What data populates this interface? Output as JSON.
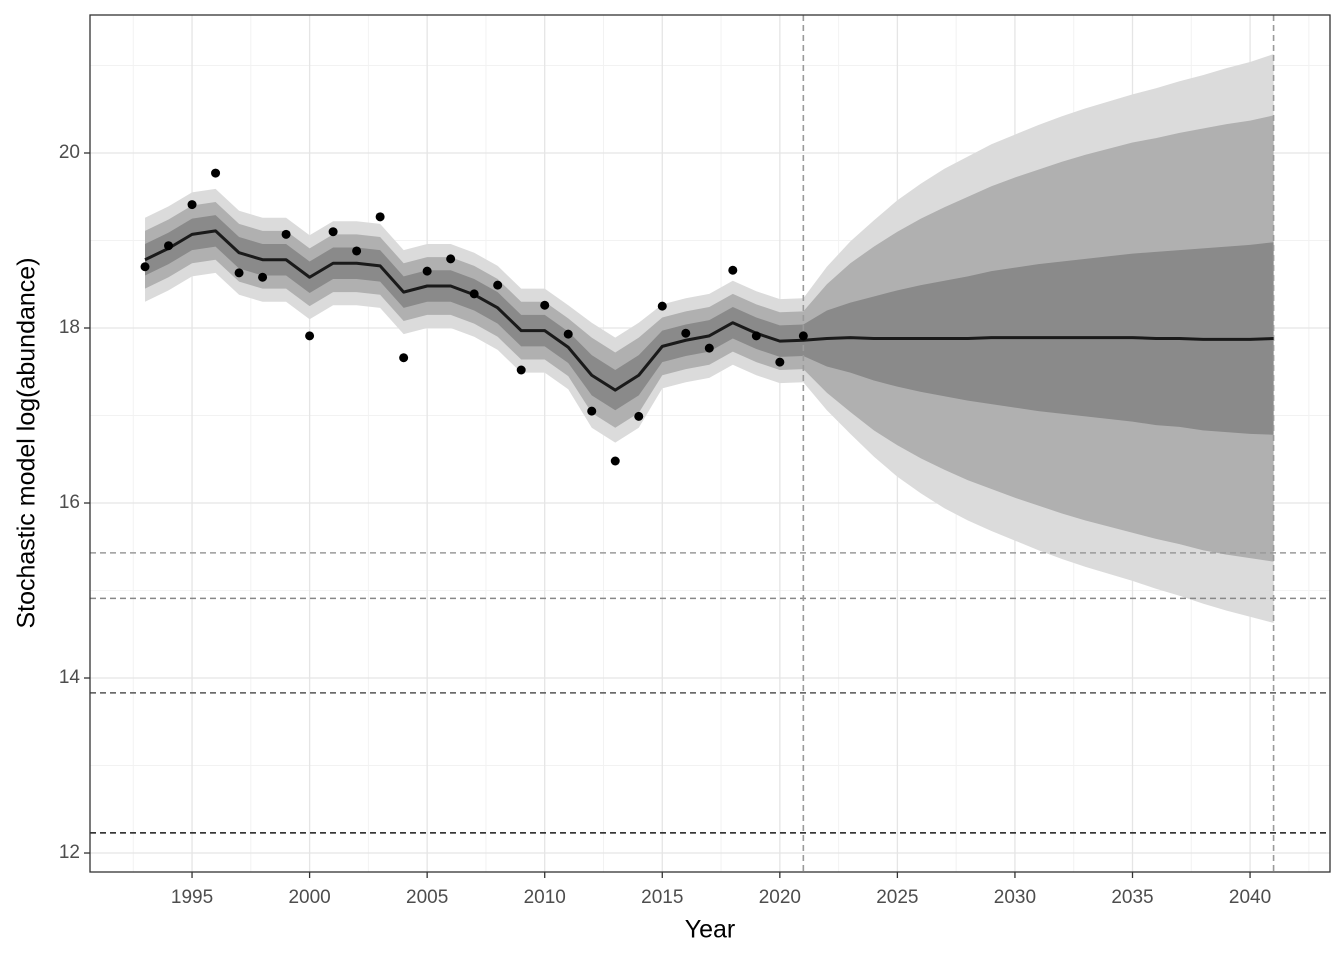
{
  "chart_data": {
    "type": "line",
    "x_label": "Year",
    "y_label": "Stochastic model log(abundance)",
    "xlim": [
      1990.66,
      2043.4
    ],
    "ylim": [
      11.783,
      21.577
    ],
    "xticks": [
      1995,
      2000,
      2005,
      2010,
      2015,
      2020,
      2025,
      2030,
      2035,
      2040
    ],
    "yticks": [
      12,
      14,
      16,
      18,
      20
    ],
    "x_minor_ticks": [
      1992.5,
      1997.5,
      2002.5,
      2007.5,
      2012.5,
      2017.5,
      2022.5,
      2027.5,
      2032.5,
      2037.5,
      2042.5
    ],
    "y_minor_ticks": [
      13,
      15,
      17,
      19,
      21
    ],
    "grid": true,
    "x": [
      1993,
      1994,
      1995,
      1996,
      1997,
      1998,
      1999,
      2000,
      2001,
      2002,
      2003,
      2004,
      2005,
      2006,
      2007,
      2008,
      2009,
      2010,
      2011,
      2012,
      2013,
      2014,
      2015,
      2016,
      2017,
      2018,
      2019,
      2020,
      2021,
      2022,
      2023,
      2024,
      2025,
      2026,
      2027,
      2028,
      2029,
      2030,
      2031,
      2032,
      2033,
      2034,
      2035,
      2036,
      2037,
      2038,
      2039,
      2040,
      2041
    ],
    "bands": [
      {
        "color": "#dbdbdb",
        "lower": [
          18.3,
          18.43,
          18.59,
          18.63,
          18.38,
          18.3,
          18.3,
          18.1,
          18.26,
          18.26,
          18.23,
          17.93,
          18.0,
          18.0,
          17.9,
          17.75,
          17.49,
          17.49,
          17.3,
          16.86,
          16.69,
          16.86,
          17.31,
          17.38,
          17.43,
          17.58,
          17.46,
          17.37,
          17.38,
          17.06,
          16.79,
          16.53,
          16.3,
          16.11,
          15.94,
          15.8,
          15.68,
          15.57,
          15.46,
          15.36,
          15.27,
          15.19,
          15.11,
          15.02,
          14.94,
          14.85,
          14.77,
          14.7,
          14.63
        ],
        "upper": [
          19.26,
          19.39,
          19.55,
          19.59,
          19.34,
          19.26,
          19.26,
          19.06,
          19.22,
          19.22,
          19.19,
          18.89,
          18.96,
          18.96,
          18.86,
          18.71,
          18.45,
          18.45,
          18.26,
          18.06,
          17.89,
          18.06,
          18.27,
          18.34,
          18.39,
          18.54,
          18.42,
          18.33,
          18.34,
          18.7,
          18.99,
          19.23,
          19.46,
          19.65,
          19.82,
          19.96,
          20.1,
          20.21,
          20.32,
          20.42,
          20.51,
          20.59,
          20.67,
          20.74,
          20.82,
          20.89,
          20.97,
          21.04,
          21.13
        ]
      },
      {
        "color": "#b0b0b0",
        "lower": [
          18.45,
          18.58,
          18.74,
          18.78,
          18.53,
          18.45,
          18.45,
          18.25,
          18.41,
          18.41,
          18.38,
          18.08,
          18.15,
          18.15,
          18.05,
          17.9,
          17.64,
          17.64,
          17.45,
          17.03,
          16.86,
          17.03,
          17.46,
          17.53,
          17.58,
          17.73,
          17.61,
          17.52,
          17.53,
          17.26,
          17.04,
          16.83,
          16.66,
          16.51,
          16.38,
          16.26,
          16.16,
          16.06,
          15.97,
          15.88,
          15.8,
          15.73,
          15.66,
          15.59,
          15.53,
          15.46,
          15.41,
          15.37,
          15.33
        ],
        "upper": [
          19.11,
          19.24,
          19.4,
          19.44,
          19.19,
          19.11,
          19.11,
          18.91,
          19.07,
          19.07,
          19.04,
          18.74,
          18.81,
          18.81,
          18.71,
          18.56,
          18.3,
          18.3,
          18.11,
          17.89,
          17.72,
          17.89,
          18.12,
          18.19,
          18.24,
          18.39,
          18.27,
          18.18,
          18.19,
          18.5,
          18.74,
          18.93,
          19.1,
          19.25,
          19.38,
          19.5,
          19.62,
          19.72,
          19.81,
          19.9,
          19.98,
          20.05,
          20.12,
          20.17,
          20.23,
          20.28,
          20.33,
          20.37,
          20.43
        ]
      },
      {
        "color": "#8a8a8a",
        "lower": [
          18.6,
          18.73,
          18.89,
          18.93,
          18.68,
          18.6,
          18.6,
          18.4,
          18.56,
          18.56,
          18.53,
          18.23,
          18.3,
          18.3,
          18.2,
          18.05,
          17.79,
          17.79,
          17.6,
          17.23,
          17.06,
          17.23,
          17.61,
          17.68,
          17.73,
          17.88,
          17.76,
          17.67,
          17.68,
          17.56,
          17.49,
          17.4,
          17.33,
          17.27,
          17.22,
          17.17,
          17.13,
          17.09,
          17.05,
          17.02,
          16.99,
          16.96,
          16.93,
          16.89,
          16.87,
          16.83,
          16.81,
          16.79,
          16.78
        ],
        "upper": [
          18.96,
          19.09,
          19.25,
          19.29,
          19.04,
          18.96,
          18.96,
          18.76,
          18.92,
          18.92,
          18.89,
          18.59,
          18.66,
          18.66,
          18.56,
          18.41,
          18.15,
          18.15,
          17.96,
          17.69,
          17.52,
          17.69,
          17.97,
          18.04,
          18.09,
          18.24,
          18.12,
          18.03,
          18.04,
          18.2,
          18.29,
          18.36,
          18.43,
          18.49,
          18.54,
          18.59,
          18.65,
          18.69,
          18.73,
          18.76,
          18.79,
          18.82,
          18.85,
          18.87,
          18.89,
          18.91,
          18.93,
          18.95,
          18.98
        ]
      }
    ],
    "series": [
      {
        "color": "#1a1a1a",
        "values": [
          18.78,
          18.91,
          19.07,
          19.11,
          18.86,
          18.78,
          18.78,
          18.58,
          18.74,
          18.74,
          18.71,
          18.41,
          18.48,
          18.48,
          18.38,
          18.23,
          17.97,
          17.97,
          17.78,
          17.46,
          17.29,
          17.46,
          17.79,
          17.86,
          17.91,
          18.06,
          17.94,
          17.85,
          17.86,
          17.88,
          17.89,
          17.88,
          17.88,
          17.88,
          17.88,
          17.88,
          17.89,
          17.89,
          17.89,
          17.89,
          17.89,
          17.89,
          17.89,
          17.88,
          17.88,
          17.87,
          17.87,
          17.87,
          17.88
        ]
      }
    ],
    "points": {
      "color": "#000000",
      "x": [
        1993,
        1994,
        1995,
        1996,
        1997,
        1998,
        1999,
        2000,
        2001,
        2002,
        2003,
        2004,
        2005,
        2006,
        2007,
        2008,
        2009,
        2010,
        2011,
        2012,
        2013,
        2014,
        2015,
        2016,
        2017,
        2018,
        2019,
        2020,
        2021
      ],
      "values": [
        18.7,
        18.94,
        19.41,
        19.77,
        18.63,
        18.58,
        19.07,
        17.91,
        19.1,
        18.88,
        19.27,
        17.66,
        18.65,
        18.79,
        18.39,
        18.49,
        17.52,
        18.26,
        17.93,
        17.05,
        16.48,
        16.99,
        18.25,
        17.94,
        17.77,
        18.66,
        17.91,
        17.61,
        17.91
      ]
    },
    "hlines": [
      {
        "value": 15.43,
        "color": "#9a9a9a"
      },
      {
        "value": 14.91,
        "color": "#888888"
      },
      {
        "value": 13.83,
        "color": "#555555"
      },
      {
        "value": 12.23,
        "color": "#1a1a1a"
      }
    ],
    "vlines": [
      {
        "value": 2021,
        "color": "#9a9a9a"
      },
      {
        "value": 2041,
        "color": "#9a9a9a"
      }
    ]
  }
}
